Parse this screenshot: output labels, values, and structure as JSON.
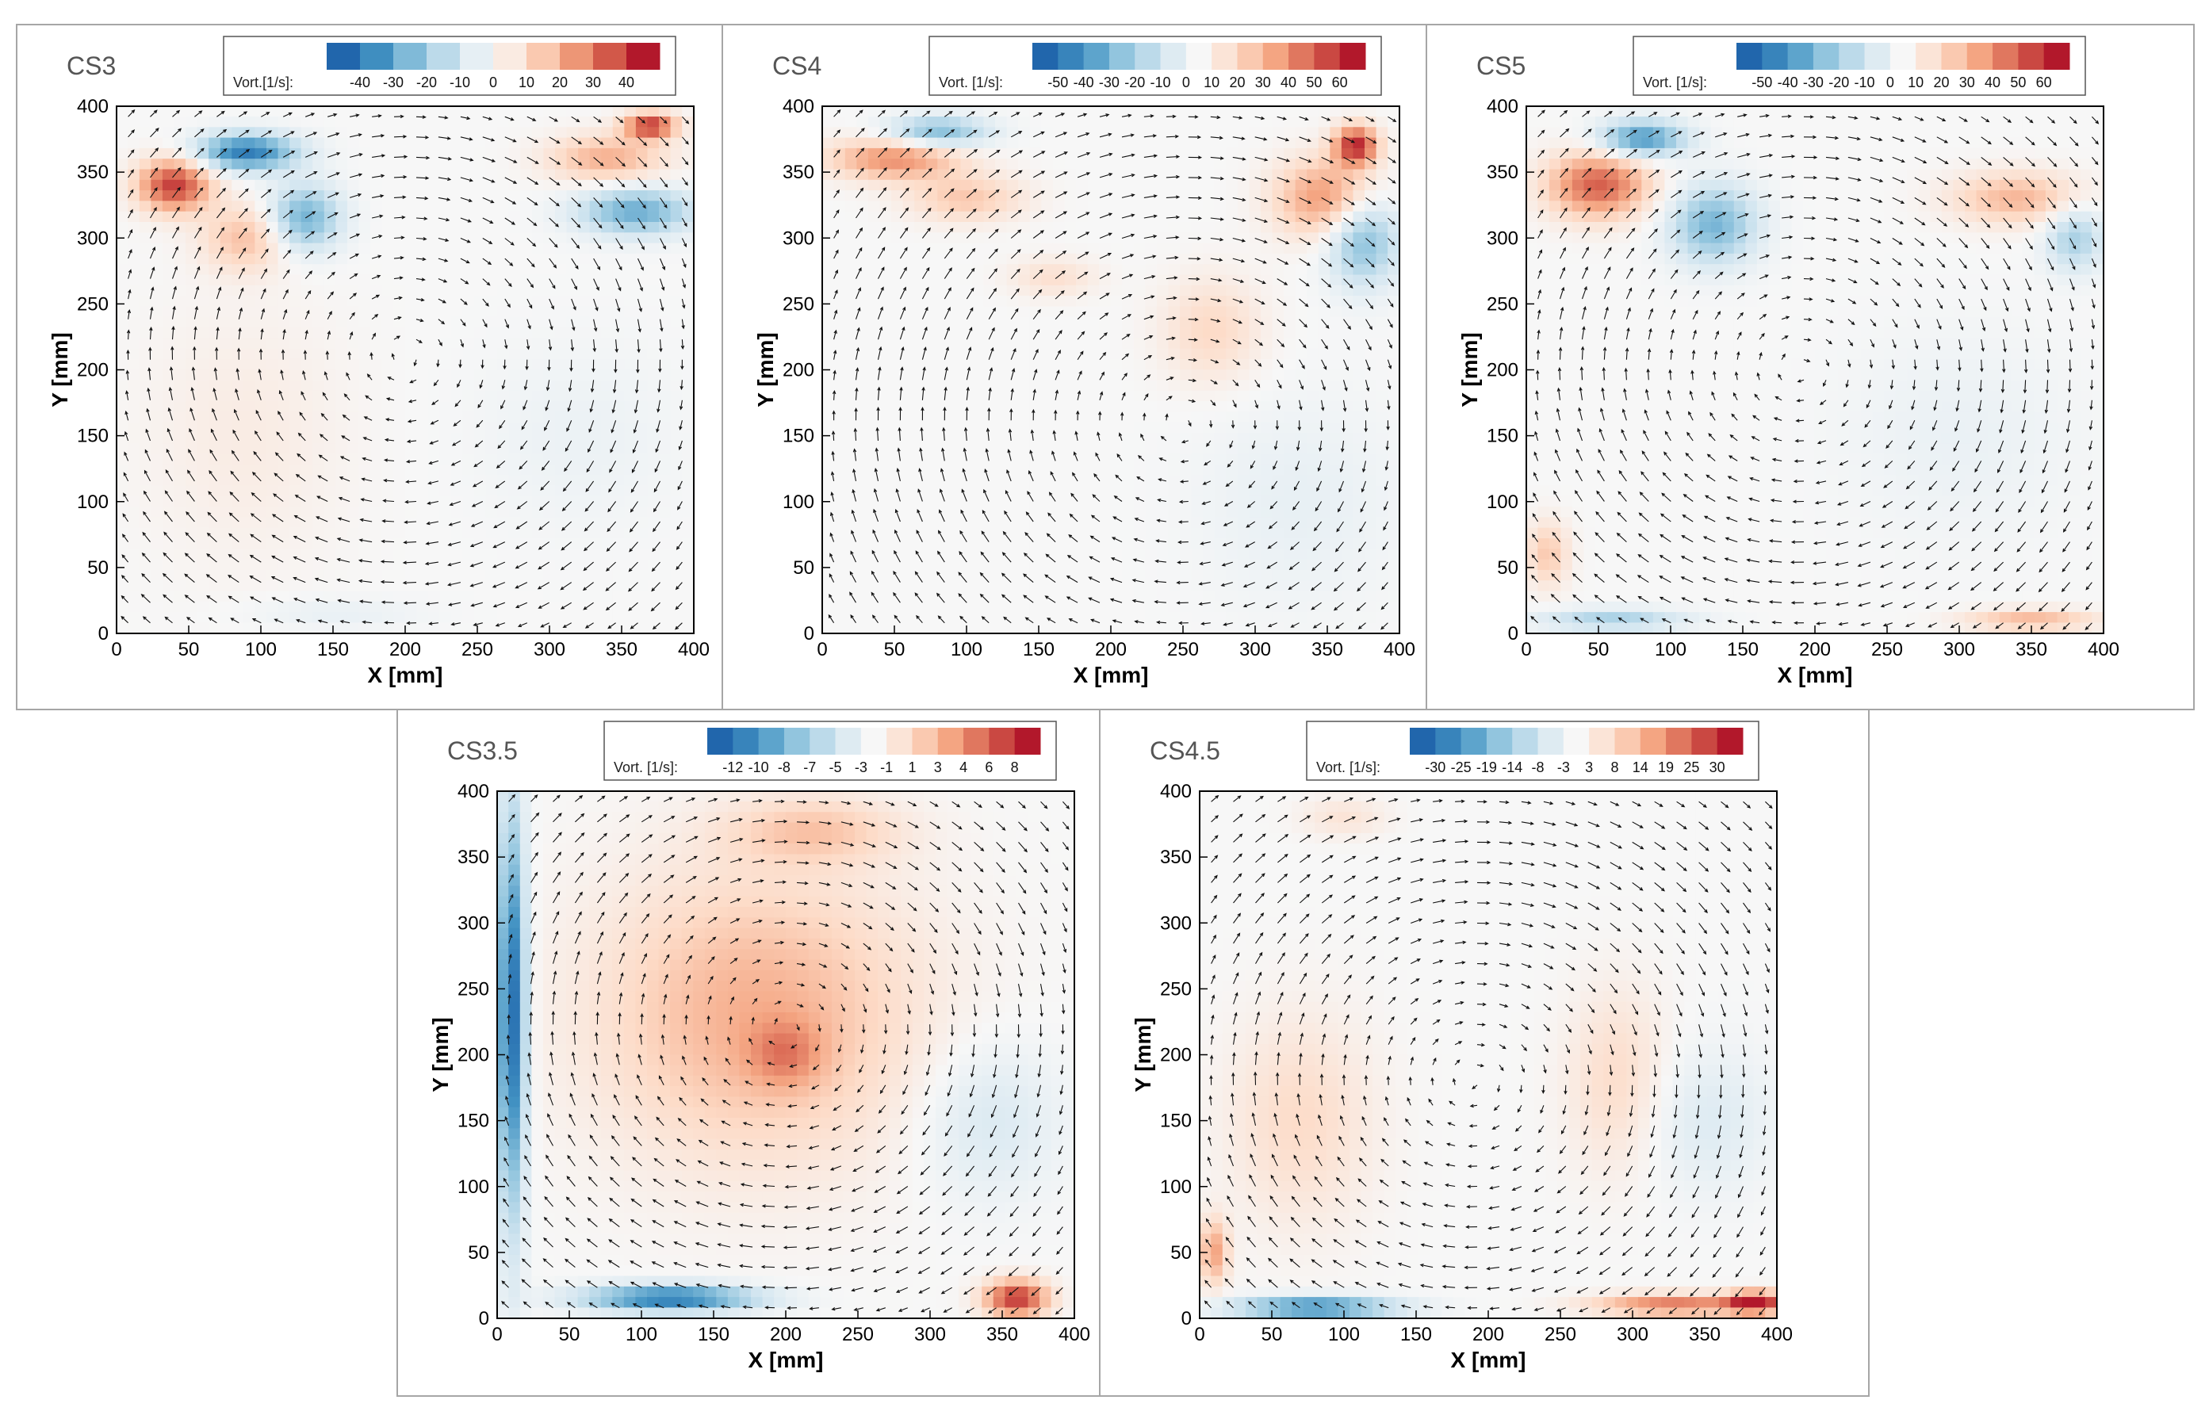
{
  "colors": {
    "scale": [
      "#2166ac",
      "#4393c3",
      "#92c5de",
      "#d1e5f0",
      "#f7f7f7",
      "#fddbc7",
      "#f4a582",
      "#d6604d",
      "#b2182b"
    ],
    "arrow": "#111111",
    "frame": "#a6a6a6"
  },
  "chart_data": [
    {
      "id": "cs3",
      "type": "vector-field-contour",
      "title": "CS3",
      "xlabel": "X [mm]",
      "ylabel": "Y [mm]",
      "xlim": [
        0,
        400
      ],
      "ylim": [
        0,
        400
      ],
      "xticks": [
        0,
        50,
        100,
        150,
        200,
        250,
        300,
        350,
        400
      ],
      "yticks": [
        0,
        50,
        100,
        150,
        200,
        250,
        300,
        350,
        400
      ],
      "legend_title": "Vort.[1/s]:",
      "legend_labels": [
        "-40",
        "-30",
        "-20",
        "-10",
        "0",
        "10",
        "20",
        "30",
        "40"
      ],
      "vmax": 40,
      "vortex_center": [
        200,
        210
      ],
      "blobs": [
        {
          "x": 40,
          "y": 340,
          "sx": 25,
          "sy": 20,
          "v": 35
        },
        {
          "x": 90,
          "y": 300,
          "sx": 30,
          "sy": 25,
          "v": 15
        },
        {
          "x": 90,
          "y": 365,
          "sx": 35,
          "sy": 14,
          "v": -35
        },
        {
          "x": 130,
          "y": 315,
          "sx": 25,
          "sy": 25,
          "v": -25
        },
        {
          "x": 340,
          "y": 360,
          "sx": 40,
          "sy": 18,
          "v": 18
        },
        {
          "x": 370,
          "y": 385,
          "sx": 18,
          "sy": 10,
          "v": 35
        },
        {
          "x": 360,
          "y": 320,
          "sx": 40,
          "sy": 18,
          "v": -25
        },
        {
          "x": 90,
          "y": 150,
          "sx": 70,
          "sy": 100,
          "v": 4
        },
        {
          "x": 320,
          "y": 150,
          "sx": 70,
          "sy": 70,
          "v": -3
        },
        {
          "x": 150,
          "y": 15,
          "sx": 60,
          "sy": 12,
          "v": -4
        }
      ]
    },
    {
      "id": "cs4",
      "type": "vector-field-contour",
      "title": "CS4",
      "xlabel": "X [mm]",
      "ylabel": "Y [mm]",
      "xlim": [
        0,
        400
      ],
      "ylim": [
        0,
        400
      ],
      "xticks": [
        0,
        50,
        100,
        150,
        200,
        250,
        300,
        350,
        400
      ],
      "yticks": [
        0,
        50,
        100,
        150,
        200,
        250,
        300,
        350,
        400
      ],
      "legend_title": "Vort. [1/s]:",
      "legend_labels": [
        "-50",
        "-40",
        "-30",
        "-20",
        "-10",
        "0",
        "10",
        "20",
        "30",
        "40",
        "50",
        "60"
      ],
      "vmax": 60,
      "vortex_center": [
        250,
        160
      ],
      "blobs": [
        {
          "x": 50,
          "y": 360,
          "sx": 45,
          "sy": 16,
          "v": 35
        },
        {
          "x": 100,
          "y": 330,
          "sx": 40,
          "sy": 18,
          "v": 20
        },
        {
          "x": 80,
          "y": 380,
          "sx": 35,
          "sy": 12,
          "v": -35
        },
        {
          "x": 160,
          "y": 270,
          "sx": 30,
          "sy": 15,
          "v": 12
        },
        {
          "x": 350,
          "y": 330,
          "sx": 35,
          "sy": 30,
          "v": 35
        },
        {
          "x": 370,
          "y": 370,
          "sx": 15,
          "sy": 15,
          "v": 55
        },
        {
          "x": 375,
          "y": 300,
          "sx": 25,
          "sy": 35,
          "v": -35
        },
        {
          "x": 270,
          "y": 230,
          "sx": 35,
          "sy": 40,
          "v": 15
        },
        {
          "x": 330,
          "y": 100,
          "sx": 70,
          "sy": 80,
          "v": -6
        }
      ]
    },
    {
      "id": "cs5",
      "type": "vector-field-contour",
      "title": "CS5",
      "xlabel": "X [mm]",
      "ylabel": "Y [mm]",
      "xlim": [
        0,
        400
      ],
      "ylim": [
        0,
        400
      ],
      "xticks": [
        0,
        50,
        100,
        150,
        200,
        250,
        300,
        350,
        400
      ],
      "yticks": [
        0,
        50,
        100,
        150,
        200,
        250,
        300,
        350,
        400
      ],
      "legend_title": "Vort. [1/s]:",
      "legend_labels": [
        "-50",
        "-40",
        "-30",
        "-20",
        "-10",
        "0",
        "10",
        "20",
        "30",
        "40",
        "50",
        "60"
      ],
      "vmax": 60,
      "vortex_center": [
        190,
        200
      ],
      "blobs": [
        {
          "x": 50,
          "y": 340,
          "sx": 35,
          "sy": 25,
          "v": 45
        },
        {
          "x": 80,
          "y": 375,
          "sx": 30,
          "sy": 14,
          "v": -45
        },
        {
          "x": 130,
          "y": 310,
          "sx": 30,
          "sy": 30,
          "v": -35
        },
        {
          "x": 340,
          "y": 330,
          "sx": 45,
          "sy": 20,
          "v": 25
        },
        {
          "x": 380,
          "y": 300,
          "sx": 20,
          "sy": 25,
          "v": -25
        },
        {
          "x": 350,
          "y": 10,
          "sx": 45,
          "sy": 8,
          "v": 25
        },
        {
          "x": 60,
          "y": 10,
          "sx": 50,
          "sy": 8,
          "v": -25
        },
        {
          "x": 15,
          "y": 60,
          "sx": 15,
          "sy": 25,
          "v": 20
        },
        {
          "x": 300,
          "y": 150,
          "sx": 80,
          "sy": 80,
          "v": -5
        }
      ]
    },
    {
      "id": "cs35",
      "type": "vector-field-contour",
      "title": "CS3.5",
      "xlabel": "X [mm]",
      "ylabel": "Y [mm]",
      "xlim": [
        0,
        400
      ],
      "ylim": [
        0,
        400
      ],
      "xticks": [
        0,
        50,
        100,
        150,
        200,
        250,
        300,
        350,
        400
      ],
      "yticks": [
        0,
        50,
        100,
        150,
        200,
        250,
        300,
        350,
        400
      ],
      "legend_title": "Vort. [1/s]:",
      "legend_labels": [
        "-12",
        "-10",
        "-8",
        "-7",
        "-5",
        "-3",
        "-1",
        "1",
        "3",
        "4",
        "6",
        "8"
      ],
      "vmax": 10,
      "vortex_center": [
        200,
        220
      ],
      "blobs": [
        {
          "x": 180,
          "y": 230,
          "sx": 110,
          "sy": 110,
          "v": 4.5
        },
        {
          "x": 200,
          "y": 200,
          "sx": 25,
          "sy": 25,
          "v": 3
        },
        {
          "x": 220,
          "y": 370,
          "sx": 60,
          "sy": 25,
          "v": 3
        },
        {
          "x": 10,
          "y": 230,
          "sx": 10,
          "sy": 150,
          "v": -10
        },
        {
          "x": 120,
          "y": 15,
          "sx": 60,
          "sy": 10,
          "v": -9
        },
        {
          "x": 360,
          "y": 15,
          "sx": 22,
          "sy": 14,
          "v": 9
        },
        {
          "x": 340,
          "y": 150,
          "sx": 50,
          "sy": 60,
          "v": -2
        }
      ]
    },
    {
      "id": "cs45",
      "type": "vector-field-contour",
      "title": "CS4.5",
      "xlabel": "X [mm]",
      "ylabel": "Y [mm]",
      "xlim": [
        0,
        400
      ],
      "ylim": [
        0,
        400
      ],
      "xticks": [
        0,
        50,
        100,
        150,
        200,
        250,
        300,
        350,
        400
      ],
      "yticks": [
        0,
        50,
        100,
        150,
        200,
        250,
        300,
        350,
        400
      ],
      "legend_title": "Vort. [1/s]:",
      "legend_labels": [
        "-30",
        "-25",
        "-19",
        "-14",
        "-8",
        "-3",
        "3",
        "8",
        "14",
        "19",
        "25",
        "30"
      ],
      "vmax": 30,
      "vortex_center": [
        190,
        180
      ],
      "blobs": [
        {
          "x": 70,
          "y": 150,
          "sx": 50,
          "sy": 80,
          "v": 7
        },
        {
          "x": 290,
          "y": 180,
          "sx": 35,
          "sy": 70,
          "v": 7
        },
        {
          "x": 330,
          "y": 10,
          "sx": 55,
          "sy": 8,
          "v": 20
        },
        {
          "x": 385,
          "y": 12,
          "sx": 18,
          "sy": 8,
          "v": 30
        },
        {
          "x": 80,
          "y": 8,
          "sx": 55,
          "sy": 8,
          "v": -25
        },
        {
          "x": 10,
          "y": 50,
          "sx": 10,
          "sy": 25,
          "v": 15
        },
        {
          "x": 350,
          "y": 150,
          "sx": 45,
          "sy": 55,
          "v": -5
        },
        {
          "x": 100,
          "y": 380,
          "sx": 30,
          "sy": 15,
          "v": 5
        }
      ]
    }
  ]
}
